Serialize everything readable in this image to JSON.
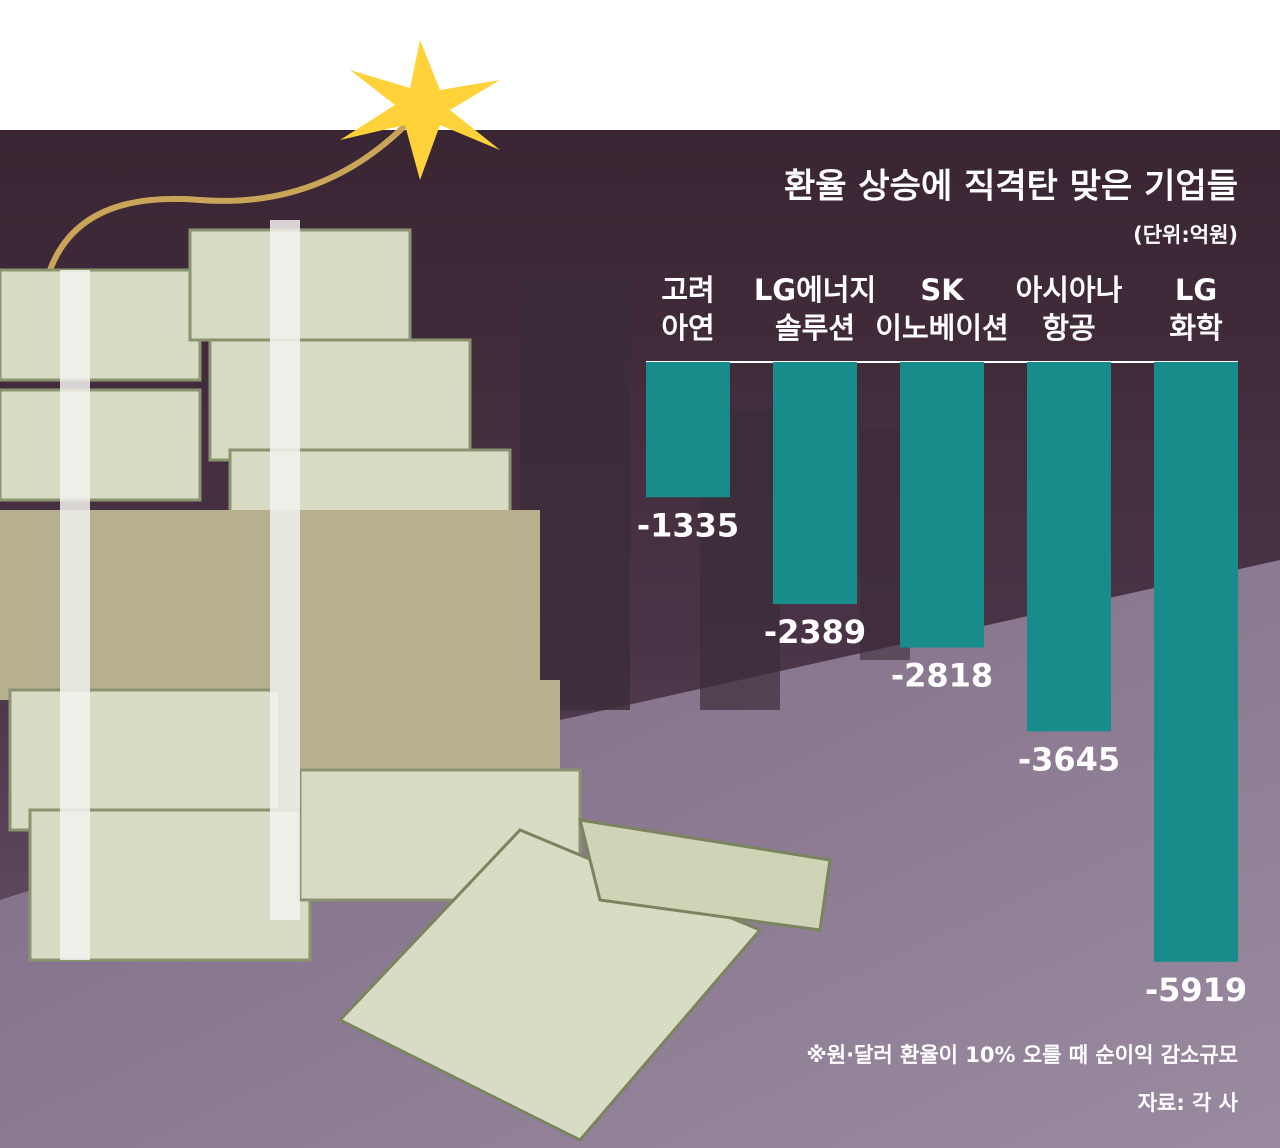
{
  "chart_data": {
    "type": "bar",
    "title": "환율 상승에 직격탄 맞은 기업들",
    "unit": "(단위:억원)",
    "note": "※원·달러 환율이 10% 오를 때 순이익 감소규모",
    "source": "자료: 각 사",
    "categories": [
      [
        "고려",
        "아연"
      ],
      [
        "LG에너지",
        "솔루션"
      ],
      [
        "SK",
        "이노베이션"
      ],
      [
        "아시아나",
        "항공"
      ],
      [
        "LG",
        "화학"
      ]
    ],
    "values": [
      -1335,
      -2389,
      -2818,
      -3645,
      -5919
    ],
    "color": "#178c8a",
    "ylim": [
      -6000,
      0
    ]
  }
}
